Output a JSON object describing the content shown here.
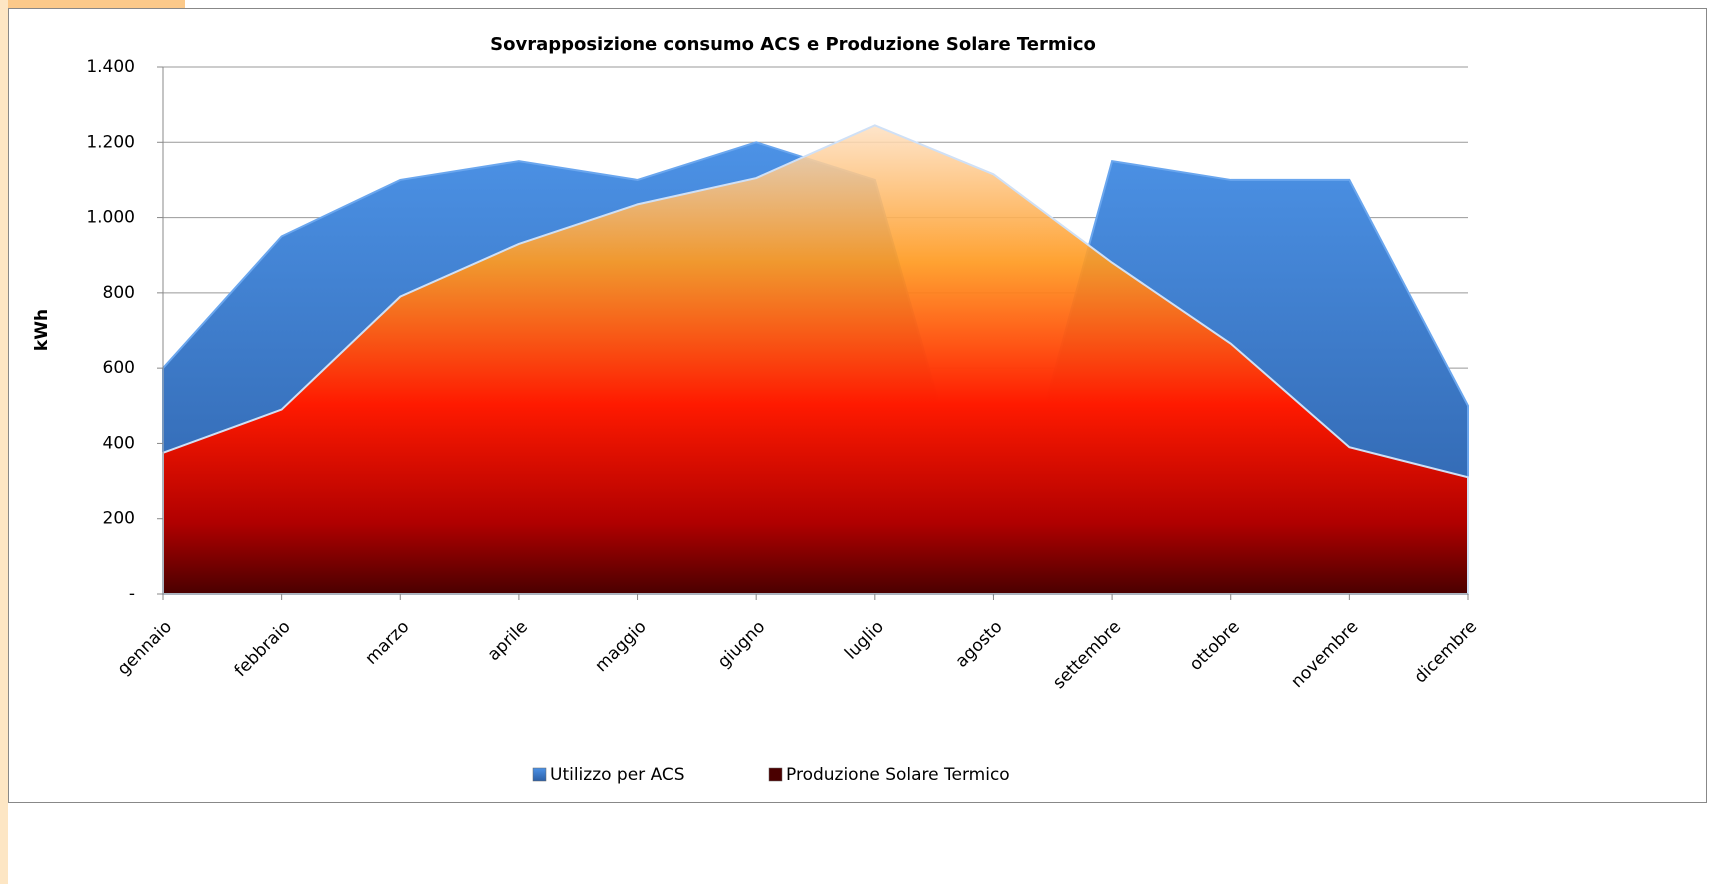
{
  "chart_data": {
    "type": "area",
    "title": "Sovrapposizione consumo ACS e Produzione Solare Termico",
    "y_label": "kWh",
    "categories": [
      "gennaio",
      "febbraio",
      "marzo",
      "aprile",
      "maggio",
      "giugno",
      "luglio",
      "agosto",
      "settembre",
      "ottobre",
      "novembre",
      "dicembre"
    ],
    "series": [
      {
        "name": "Utilizzo per ACS",
        "color": "#3a7bd5",
        "values": [
          600,
          950,
          1100,
          1150,
          1100,
          1200,
          1100,
          0,
          1150,
          1100,
          1100,
          500
        ]
      },
      {
        "name": "Produzione Solare Termico",
        "color": "#ff6a00",
        "values": [
          375,
          490,
          790,
          930,
          1035,
          1105,
          1245,
          1115,
          880,
          665,
          390,
          310
        ]
      }
    ],
    "ylim": [
      0,
      1400
    ],
    "yticks": [
      {
        "value": 0,
        "label": "-"
      },
      200,
      400,
      600,
      800,
      {
        "value": 1000,
        "label": "1.000"
      },
      {
        "value": 1200,
        "label": "1.200"
      },
      {
        "value": 1400,
        "label": "1.400"
      }
    ],
    "grid": true,
    "legend": "bottom"
  }
}
